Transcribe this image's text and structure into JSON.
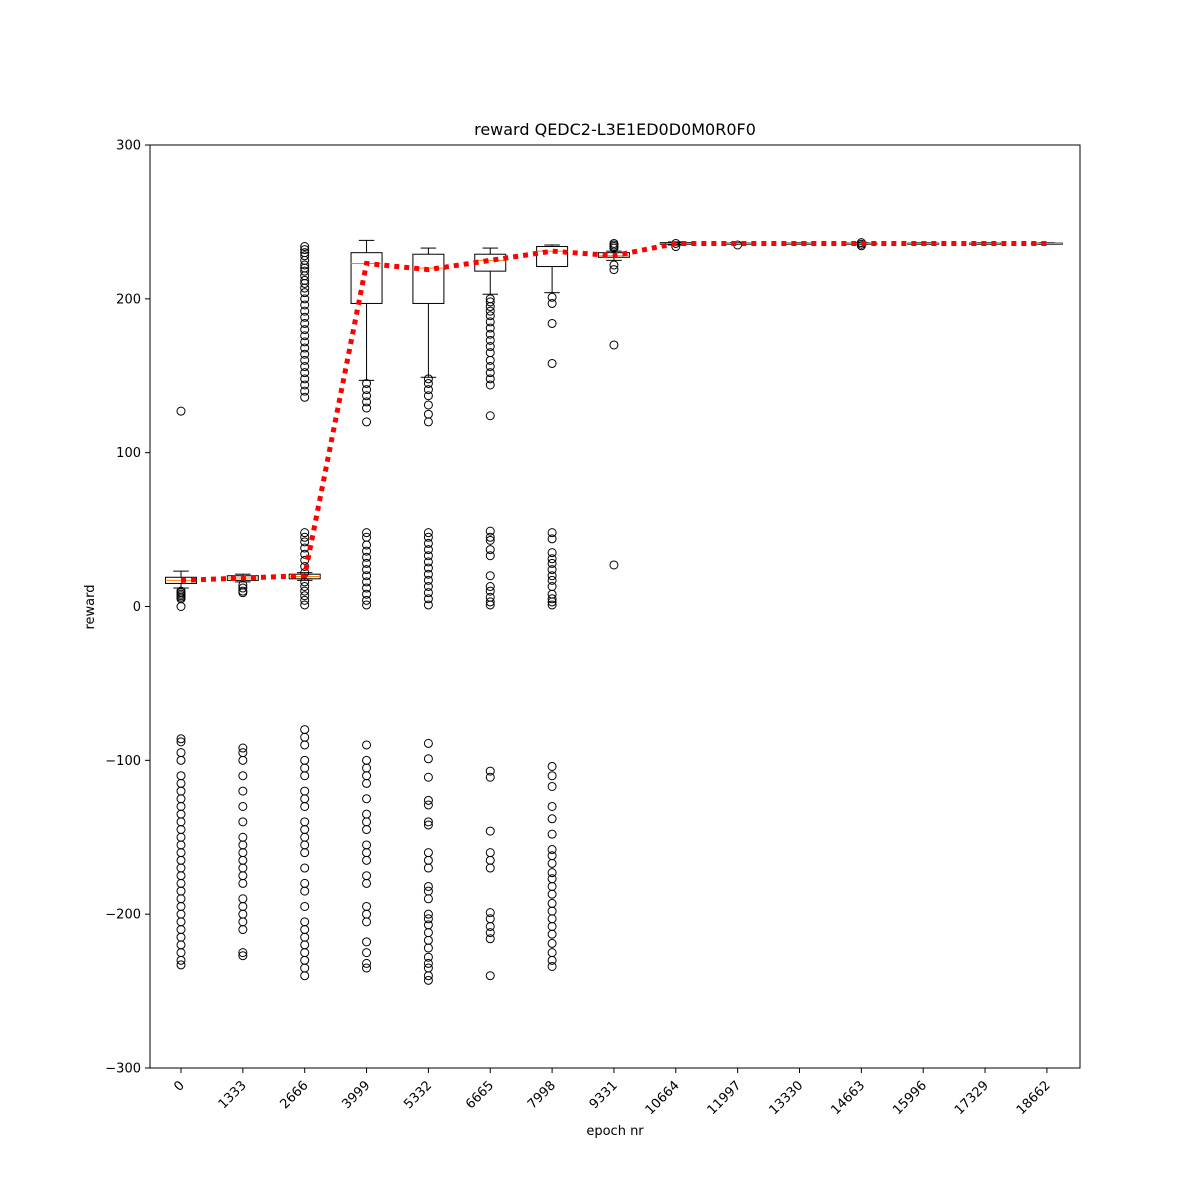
{
  "chart_data": {
    "type": "box",
    "title": "reward QEDC2-L3E1ED0D0M0R0F0",
    "xlabel": "epoch nr",
    "ylabel": "reward",
    "ylim": [
      -300,
      300
    ],
    "yticks": [
      -300,
      -200,
      -100,
      0,
      100,
      200,
      300
    ],
    "categories": [
      "0",
      "1333",
      "2666",
      "3999",
      "5332",
      "6665",
      "7998",
      "9331",
      "10664",
      "11997",
      "13330",
      "14663",
      "15996",
      "17329",
      "18662"
    ],
    "boxes": [
      {
        "q1": 15,
        "median": 17,
        "q3": 19,
        "whisker_low": 12,
        "whisker_high": 23,
        "outliers": [
          127,
          10,
          9,
          8,
          7,
          6,
          5,
          0,
          -86,
          -88,
          -95,
          -100,
          -110,
          -115,
          -120,
          -125,
          -130,
          -135,
          -140,
          -145,
          -150,
          -155,
          -160,
          -165,
          -170,
          -175,
          -180,
          -185,
          -190,
          -195,
          -200,
          -205,
          -210,
          -215,
          -220,
          -225,
          -230,
          -233
        ]
      },
      {
        "q1": 17,
        "median": 18.5,
        "q3": 20,
        "whisker_low": 16,
        "whisker_high": 21,
        "outliers": [
          14,
          12,
          10,
          9,
          -92,
          -95,
          -100,
          -110,
          -120,
          -130,
          -140,
          -150,
          -155,
          -160,
          -165,
          -170,
          -175,
          -180,
          -190,
          -195,
          -200,
          -205,
          -210,
          -225,
          -227
        ]
      },
      {
        "q1": 18,
        "median": 19.5,
        "q3": 21,
        "whisker_low": 17,
        "whisker_high": 22,
        "outliers": [
          234,
          232,
          230,
          228,
          225,
          222,
          220,
          218,
          215,
          212,
          210,
          207,
          204,
          200,
          196,
          192,
          188,
          184,
          180,
          176,
          172,
          168,
          164,
          160,
          156,
          152,
          148,
          144,
          140,
          136,
          48,
          45,
          42,
          38,
          34,
          30,
          26,
          22,
          16,
          13,
          10,
          7,
          4,
          1,
          -80,
          -85,
          -90,
          -100,
          -105,
          -110,
          -120,
          -125,
          -130,
          -140,
          -145,
          -150,
          -155,
          -160,
          -170,
          -180,
          -185,
          -195,
          -205,
          -210,
          -215,
          -220,
          -225,
          -230,
          -235,
          -240
        ]
      },
      {
        "q1": 197,
        "median": 223,
        "q3": 230,
        "whisker_low": 147,
        "whisker_high": 238,
        "outliers": [
          145,
          141,
          137,
          133,
          129,
          120,
          48,
          45,
          40,
          36,
          32,
          28,
          24,
          20,
          16,
          12,
          8,
          4,
          1,
          -90,
          -100,
          -105,
          -110,
          -115,
          -125,
          -135,
          -140,
          -145,
          -155,
          -160,
          -165,
          -175,
          -180,
          -195,
          -200,
          -205,
          -218,
          -225,
          -232,
          -235
        ]
      },
      {
        "q1": 197,
        "median": 220,
        "q3": 229,
        "whisker_low": 149,
        "whisker_high": 233,
        "outliers": [
          148,
          145,
          141,
          137,
          131,
          125,
          120,
          48,
          45,
          41,
          37,
          33,
          29,
          25,
          21,
          17,
          13,
          9,
          5,
          1,
          -89,
          -99,
          -111,
          -126,
          -129,
          -140,
          -142,
          -160,
          -165,
          -170,
          -182,
          -185,
          -190,
          -200,
          -203,
          -207,
          -212,
          -217,
          -222,
          -228,
          -232,
          -235,
          -240,
          -243
        ]
      },
      {
        "q1": 218,
        "median": 225,
        "q3": 229,
        "whisker_low": 203,
        "whisker_high": 233,
        "outliers": [
          200,
          198,
          195,
          192,
          189,
          185,
          181,
          177,
          173,
          169,
          165,
          160,
          156,
          152,
          148,
          144,
          124,
          49,
          45,
          43,
          37,
          33,
          20,
          13,
          10,
          6,
          3,
          1,
          -107,
          -111,
          -146,
          -160,
          -165,
          -170,
          -199,
          -203,
          -208,
          -212,
          -216,
          -240
        ]
      },
      {
        "q1": 221,
        "median": 231,
        "q3": 234,
        "whisker_low": 204,
        "whisker_high": 235,
        "outliers": [
          201,
          197,
          184,
          158,
          48,
          44,
          35,
          31,
          28,
          24,
          20,
          17,
          13,
          8,
          5,
          3,
          1,
          -104,
          -110,
          -117,
          -130,
          -138,
          -148,
          -158,
          -162,
          -167,
          -173,
          -177,
          -182,
          -187,
          -193,
          -198,
          -203,
          -208,
          -213,
          -219,
          -225,
          -230,
          -234
        ]
      },
      {
        "q1": 227,
        "median": 228,
        "q3": 230,
        "whisker_low": 225,
        "whisker_high": 231,
        "outliers": [
          236,
          235,
          234,
          233,
          222,
          219,
          170,
          27
        ]
      },
      {
        "q1": 235.5,
        "median": 236,
        "q3": 236.5,
        "whisker_low": 235,
        "whisker_high": 237,
        "outliers": [
          236,
          234
        ]
      },
      {
        "q1": 235.8,
        "median": 236,
        "q3": 236.2,
        "whisker_low": 235.6,
        "whisker_high": 236.4,
        "outliers": [
          235
        ]
      },
      {
        "q1": 235.8,
        "median": 236,
        "q3": 236.2,
        "whisker_low": 235.6,
        "whisker_high": 236.4,
        "outliers": []
      },
      {
        "q1": 235.8,
        "median": 236,
        "q3": 236.2,
        "whisker_low": 235.6,
        "whisker_high": 236.4,
        "outliers": [
          236.5,
          235.5,
          234.5
        ]
      },
      {
        "q1": 235.8,
        "median": 236,
        "q3": 236.2,
        "whisker_low": 235.6,
        "whisker_high": 236.4,
        "outliers": []
      },
      {
        "q1": 235.8,
        "median": 236,
        "q3": 236.2,
        "whisker_low": 235.6,
        "whisker_high": 236.4,
        "outliers": []
      },
      {
        "q1": 235.8,
        "median": 236,
        "q3": 236.2,
        "whisker_low": 235.6,
        "whisker_high": 236.4,
        "outliers": []
      }
    ],
    "mean_line": {
      "style": "dotted",
      "color": "#ff0000",
      "values": [
        17,
        18.5,
        20,
        223,
        219,
        225,
        231,
        228,
        236,
        236,
        236,
        236,
        236,
        236,
        236
      ]
    },
    "colors": {
      "box_edge": "#000000",
      "median": "#ff7f0e",
      "outlier_edge": "#000000",
      "mean_line": "#ff0000"
    },
    "grid": false,
    "legend": "none"
  }
}
